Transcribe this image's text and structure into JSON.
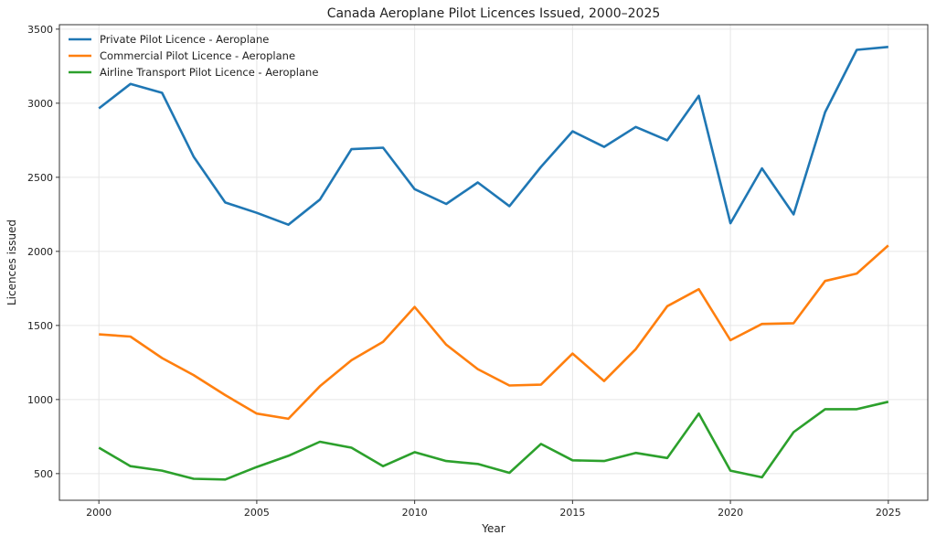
{
  "chart_data": {
    "type": "line",
    "title": "Canada Aeroplane Pilot Licences Issued, 2000–2025",
    "xlabel": "Year",
    "ylabel": "Licences issued",
    "xlim": [
      1998.75,
      2026.25
    ],
    "ylim": [
      320,
      3530
    ],
    "xticks": [
      2000,
      2005,
      2010,
      2015,
      2020,
      2025
    ],
    "yticks": [
      500,
      1000,
      1500,
      2000,
      2500,
      3000,
      3500
    ],
    "grid": true,
    "legend_position": "top-left",
    "x": [
      2000,
      2001,
      2002,
      2003,
      2004,
      2005,
      2006,
      2007,
      2008,
      2009,
      2010,
      2011,
      2012,
      2013,
      2014,
      2015,
      2016,
      2017,
      2018,
      2019,
      2020,
      2021,
      2022,
      2023,
      2024,
      2025
    ],
    "series": [
      {
        "name": "Private Pilot Licence - Aeroplane",
        "color": "#1f77b4",
        "values": [
          2965,
          3130,
          3070,
          2640,
          2330,
          2260,
          2180,
          2350,
          2690,
          2700,
          2420,
          2320,
          2465,
          2305,
          2570,
          2810,
          2705,
          2840,
          2750,
          3050,
          2190,
          2560,
          2250,
          2940,
          3360,
          3380
        ]
      },
      {
        "name": "Commercial Pilot Licence - Aeroplane",
        "color": "#ff7f0e",
        "values": [
          1440,
          1425,
          1280,
          1165,
          1030,
          905,
          870,
          1090,
          1265,
          1390,
          1625,
          1370,
          1205,
          1095,
          1100,
          1310,
          1125,
          1340,
          1630,
          1745,
          1400,
          1510,
          1515,
          1800,
          1850,
          2040
        ]
      },
      {
        "name": "Airline Transport Pilot Licence - Aeroplane",
        "color": "#2ca02c",
        "values": [
          675,
          550,
          520,
          465,
          460,
          545,
          620,
          715,
          675,
          550,
          645,
          585,
          565,
          505,
          700,
          590,
          585,
          640,
          605,
          905,
          520,
          475,
          780,
          935,
          935,
          985
        ]
      }
    ]
  }
}
